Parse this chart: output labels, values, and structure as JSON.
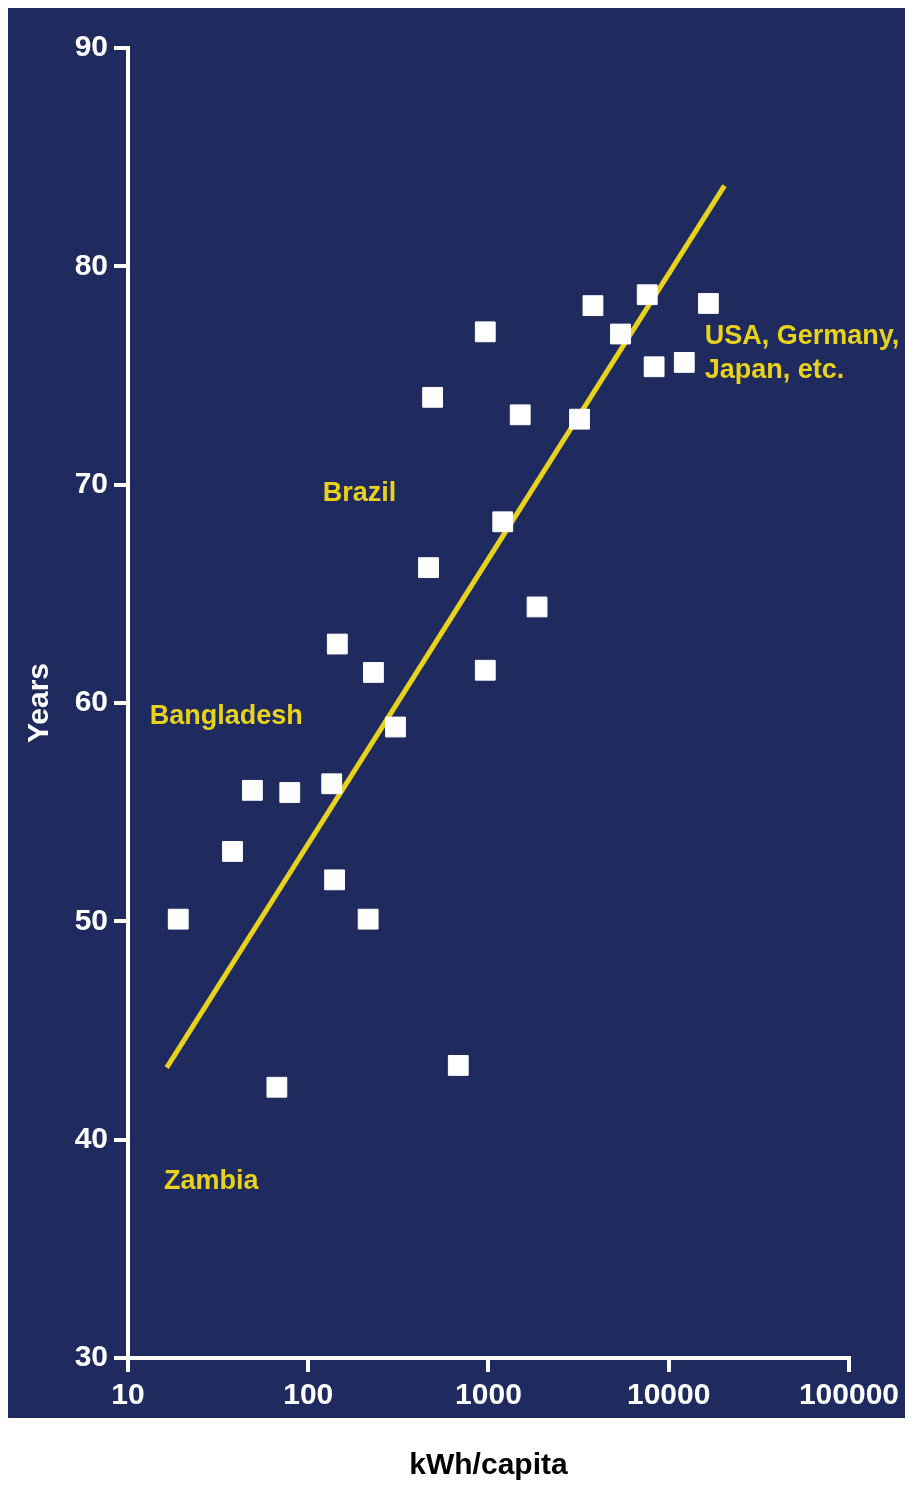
{
  "chart_data": {
    "type": "scatter",
    "xlabel": "kWh/capita",
    "ylabel": "Years",
    "log": "x",
    "grid": false,
    "legend": false,
    "marker": "square",
    "xlim": [
      10,
      100000
    ],
    "xticks": [
      10,
      100,
      1000,
      10000,
      100000
    ],
    "ylim": [
      30,
      90
    ],
    "yticks": [
      30,
      40,
      50,
      60,
      70,
      80,
      90
    ],
    "series": [
      {
        "type": "scatter",
        "color": "#ffffff",
        "x": [
          16600,
          12200,
          7600,
          8300,
          5400,
          3800,
          3200,
          1860,
          1500,
          1200,
          960,
          960,
          680,
          490,
          465,
          305,
          230,
          215,
          145,
          135,
          140,
          79,
          67,
          49,
          38,
          19
        ],
        "values": [
          78.3,
          75.6,
          78.7,
          75.4,
          76.9,
          78.2,
          73.0,
          64.4,
          73.2,
          68.3,
          77.0,
          61.5,
          43.4,
          74.0,
          66.2,
          58.9,
          61.4,
          50.1,
          62.7,
          56.3,
          51.9,
          55.9,
          42.4,
          56.0,
          53.2,
          50.1
        ]
      },
      {
        "type": "line",
        "color": "#e8d21c",
        "marker": "none",
        "x": [
          16.4,
          20400
        ],
        "values": [
          43.3,
          83.7
        ]
      }
    ],
    "annotations": [
      "USA, Germany,\nJapan, etc.",
      "Brazil",
      "Bangladesh",
      "Zambia"
    ]
  }
}
